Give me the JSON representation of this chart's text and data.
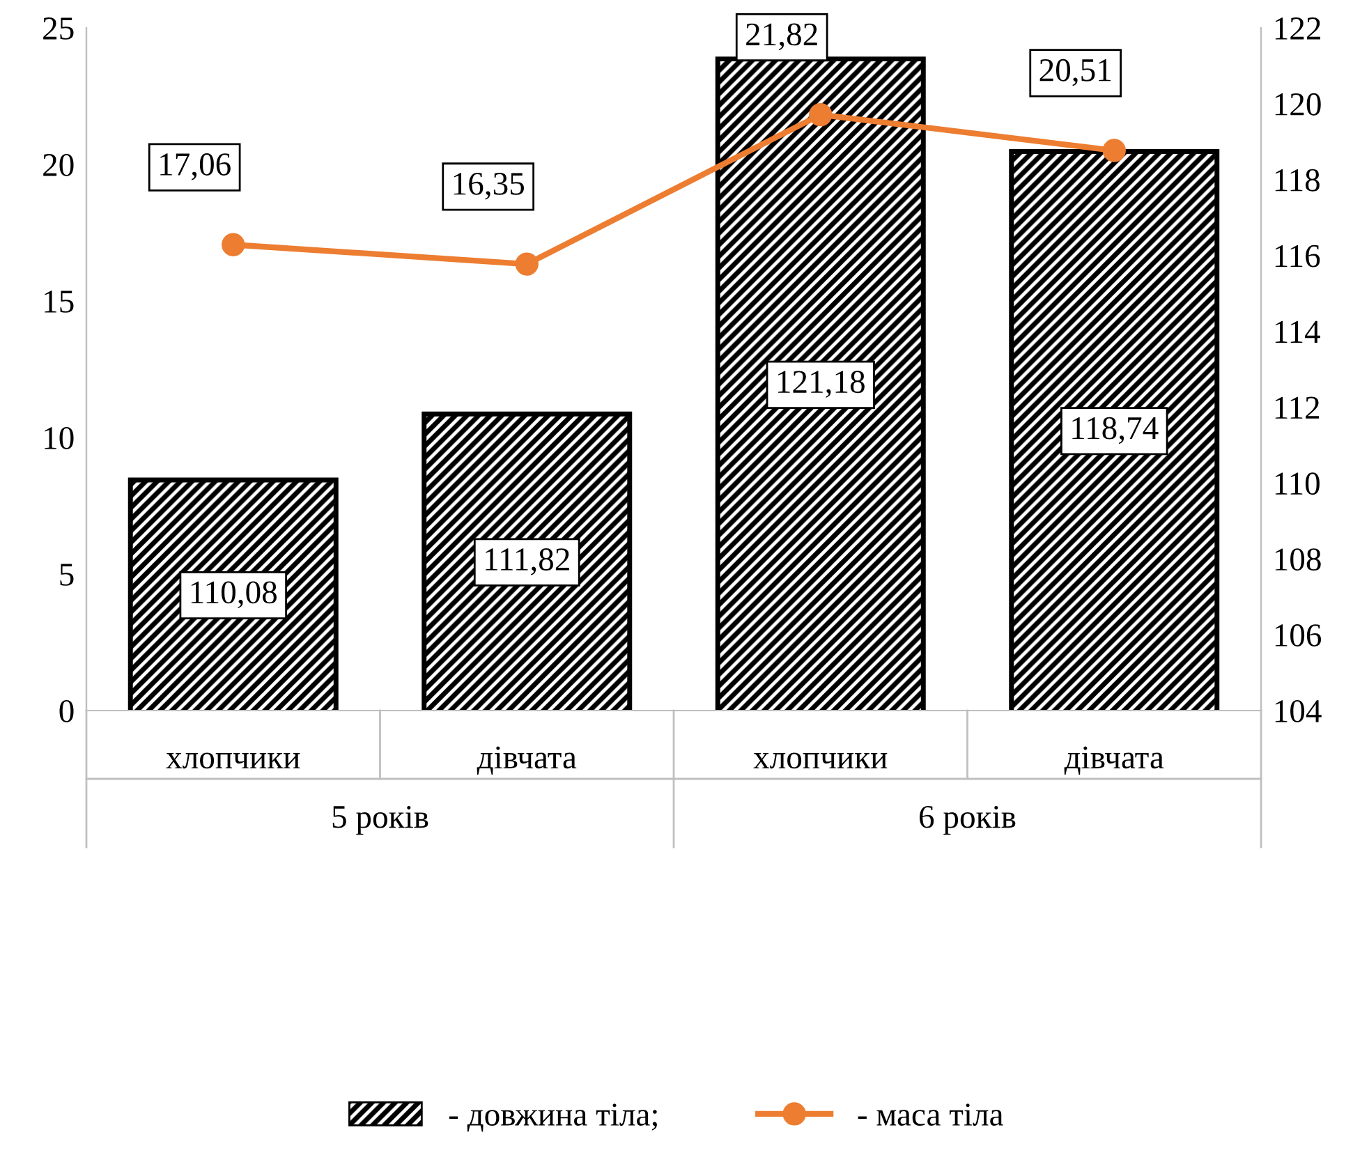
{
  "chart_data": {
    "type": "bar",
    "categories": [
      "хлопчики",
      "дівчата",
      "хлопчики",
      "дівчата"
    ],
    "series": [
      {
        "name": "- довжина тіла;",
        "axis": "y2",
        "color": "#000000",
        "values": [
          110.08,
          111.82,
          121.18,
          118.74
        ],
        "value_labels": [
          "110,08",
          "111,82",
          "121,18",
          "118,74"
        ]
      },
      {
        "name": "- маса тіла",
        "type": "line",
        "axis": "y",
        "color": "#ed7d31",
        "marker": "circle",
        "values": [
          17.06,
          16.35,
          21.82,
          20.51
        ],
        "value_labels": [
          "17,06",
          "16,35",
          "21,82",
          "20,51"
        ]
      }
    ],
    "annotations": [
      "5 років",
      "6 років"
    ],
    "ylim": [
      0,
      25
    ],
    "yticks": [
      0,
      5,
      10,
      15,
      20,
      25
    ],
    "y2lim": [
      104,
      122
    ],
    "y2ticks": [
      104,
      106,
      108,
      110,
      112,
      114,
      116,
      118,
      120,
      122
    ],
    "grid": false,
    "legend": "bottom"
  }
}
